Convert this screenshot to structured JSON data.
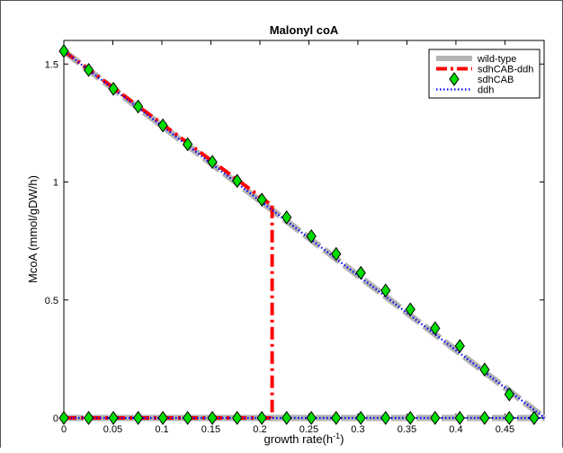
{
  "chart_data": {
    "type": "line",
    "title": "Malonyl coA",
    "xlabel": "growth rate(h",
    "xlabel_sup": "-1",
    "xlabel_suffix": ")",
    "ylabel": "McoA (mmol/gDW/h)",
    "xlim": [
      0,
      0.49
    ],
    "ylim": [
      0,
      1.6
    ],
    "xticks": [
      0,
      0.05,
      0.1,
      0.15,
      0.2,
      0.25,
      0.3,
      0.35,
      0.4,
      0.45
    ],
    "xtick_labels": [
      "0",
      "0.05",
      "0.1",
      "0.15",
      "0.2",
      "0.25",
      "0.3",
      "0.35",
      "0.4",
      "0.45"
    ],
    "yticks": [
      0,
      0.5,
      1,
      1.5
    ],
    "ytick_labels": [
      "0",
      "0.5",
      "1",
      "1.5"
    ],
    "grid": false,
    "legend_position": "top-right",
    "colors": {
      "wild_type": "#b3b3b3",
      "sdhCAB_ddh": "#ff0000",
      "sdhCAB_face": "#00dd00",
      "sdhCAB_edge": "#000000",
      "ddh": "#0000ff"
    },
    "series": [
      {
        "name": "wild-type",
        "style": "thick-dashed-gray",
        "segments": [
          {
            "x": [
              0,
              0.4906
            ],
            "y": [
              1.555,
              0
            ]
          },
          {
            "x": [
              0,
              0.4906
            ],
            "y": [
              0,
              0
            ]
          }
        ]
      },
      {
        "name": "sdhCAB-ddh",
        "style": "dash-dot-red",
        "segments": [
          {
            "x": [
              0,
              0.2125
            ],
            "y": [
              1.555,
              0.9
            ]
          },
          {
            "x": [
              0.2125,
              0.2125
            ],
            "y": [
              0.9,
              0
            ]
          },
          {
            "x": [
              0,
              0.2125
            ],
            "y": [
              0,
              0
            ]
          }
        ]
      },
      {
        "name": "sdhCAB",
        "style": "green-diamond-markers",
        "x": [
          0,
          0.0253,
          0.0505,
          0.0758,
          0.101,
          0.1263,
          0.1515,
          0.1768,
          0.202,
          0.2273,
          0.2525,
          0.2778,
          0.303,
          0.3283,
          0.3535,
          0.3788,
          0.404,
          0.4293,
          0.4545,
          0.4798
        ],
        "y": [
          1.555,
          1.475,
          1.395,
          1.32,
          1.24,
          1.16,
          1.085,
          1.005,
          0.925,
          0.85,
          0.77,
          0.695,
          0.615,
          0.54,
          0.46,
          0.38,
          0.305,
          0.205,
          0.1,
          0
        ],
        "y_lower": [
          0,
          0,
          0,
          0,
          0,
          0,
          0,
          0,
          0,
          0,
          0,
          0,
          0,
          0,
          0,
          0,
          0,
          0,
          0,
          0
        ]
      },
      {
        "name": "ddh",
        "style": "dotted-blue",
        "segments": [
          {
            "x": [
              0,
              0.4906
            ],
            "y": [
              1.555,
              0
            ]
          },
          {
            "x": [
              0,
              0.4906
            ],
            "y": [
              0,
              0
            ]
          }
        ]
      }
    ]
  }
}
